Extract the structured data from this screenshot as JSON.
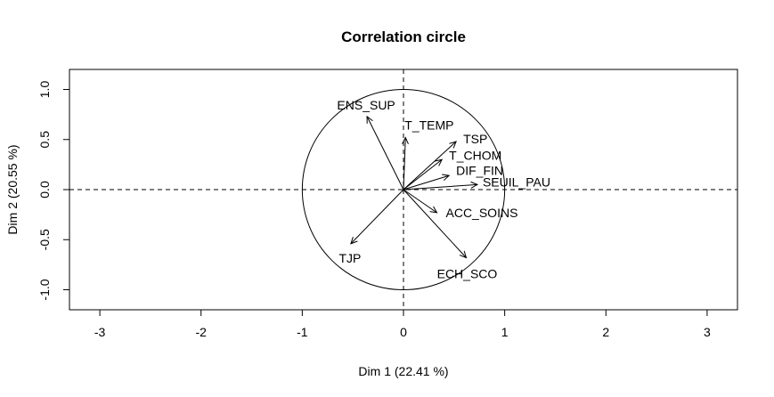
{
  "chart_data": {
    "type": "scatter",
    "title": "Correlation circle",
    "xlabel": "Dim 1 (22.41 %)",
    "ylabel": "Dim 2 (20.55 %)",
    "xlim": [
      -3.3,
      3.3
    ],
    "ylim": [
      -1.2,
      1.2
    ],
    "xticks": [
      -3,
      -2,
      -1,
      0,
      1,
      2,
      3
    ],
    "yticks": [
      -1.0,
      -0.5,
      0.0,
      0.5,
      1.0
    ],
    "xtick_labels": [
      "-3",
      "-2",
      "-1",
      "0",
      "1",
      "2",
      "3"
    ],
    "ytick_labels": [
      "-1.0",
      "-0.5",
      "0.0",
      "0.5",
      "1.0"
    ],
    "circle_radius": 1,
    "variables": [
      {
        "name": "ENS_SUP",
        "x": -0.36,
        "y": 0.73
      },
      {
        "name": "T_TEMP",
        "x": 0.02,
        "y": 0.52
      },
      {
        "name": "TSP",
        "x": 0.52,
        "y": 0.48
      },
      {
        "name": "T_CHOM",
        "x": 0.38,
        "y": 0.3
      },
      {
        "name": "DIF_FIN",
        "x": 0.45,
        "y": 0.14
      },
      {
        "name": "SEUIL_PAU",
        "x": 0.73,
        "y": 0.05
      },
      {
        "name": "ACC_SOINS",
        "x": 0.33,
        "y": -0.23
      },
      {
        "name": "ECH_SCO",
        "x": 0.62,
        "y": -0.68
      },
      {
        "name": "TJP",
        "x": -0.52,
        "y": -0.54
      }
    ]
  }
}
